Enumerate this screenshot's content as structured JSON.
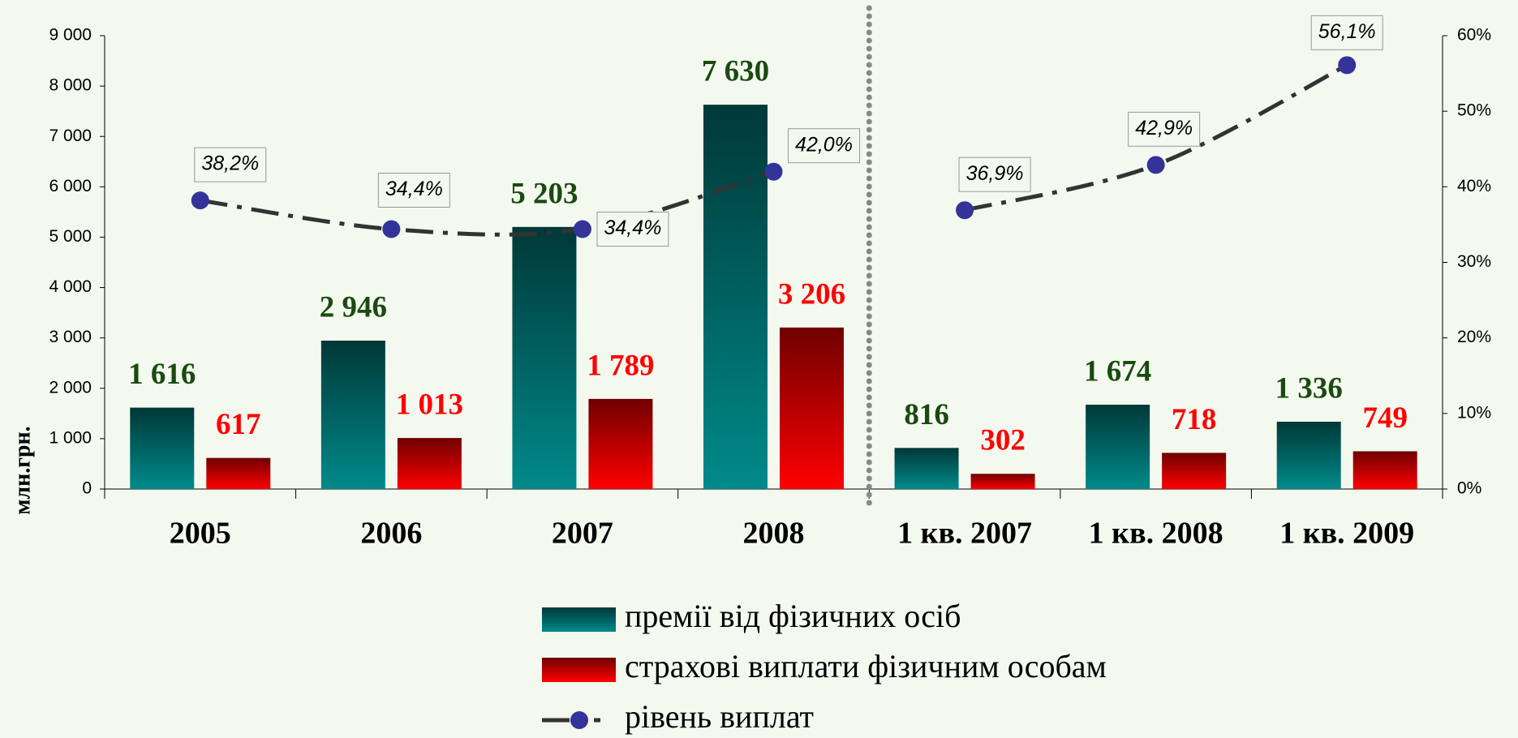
{
  "chart_data": {
    "type": "bar",
    "y_label": "млн.грн.",
    "categories": [
      "2005",
      "2006",
      "2007",
      "2008",
      "1 кв. 2007",
      "1 кв. 2008",
      "1 кв. 2009"
    ],
    "divider_after": 3,
    "series": [
      {
        "name": "премії від фізичних осіб",
        "type": "bar",
        "color": [
          "#003838",
          "#008a8a"
        ],
        "label_color": "#1a4a10",
        "values": [
          1616,
          2946,
          5203,
          7630,
          816,
          1674,
          1336
        ],
        "value_labels": [
          "1 616",
          "2 946",
          "5 203",
          "7 630",
          "816",
          "1 674",
          "1 336"
        ]
      },
      {
        "name": "страхові виплати фізичним особам",
        "type": "bar",
        "color": [
          "#700000",
          "#ff0000"
        ],
        "label_color": "#ff0000",
        "values": [
          617,
          1013,
          1789,
          3206,
          302,
          718,
          749
        ],
        "value_labels": [
          "617",
          "1 013",
          "1 789",
          "3 206",
          "302",
          "718",
          "749"
        ]
      },
      {
        "name": "рівень виплат",
        "type": "line",
        "axis": "y2",
        "color": "#333333",
        "marker_color": "#333399",
        "values": [
          38.2,
          34.4,
          34.4,
          42.0,
          36.9,
          42.9,
          56.1
        ],
        "value_labels": [
          "38,2%",
          "34,4%",
          "34,4%",
          "42,0%",
          "36,9%",
          "42,9%",
          "56,1%"
        ]
      }
    ],
    "ylim": [
      0,
      9000
    ],
    "yticks": [
      0,
      {
        "value": 1000,
        "label": "1 000"
      },
      {
        "value": 2000,
        "label": "2 000"
      },
      {
        "value": 3000,
        "label": "3 000"
      },
      {
        "value": 4000,
        "label": "4 000"
      },
      {
        "value": 5000,
        "label": "5 000"
      },
      {
        "value": 6000,
        "label": "6 000"
      },
      {
        "value": 7000,
        "label": "7 000"
      },
      {
        "value": 8000,
        "label": "8 000"
      },
      {
        "value": 9000,
        "label": "9 000"
      }
    ],
    "y2lim": [
      0,
      60
    ],
    "y2ticks": [
      {
        "value": 0,
        "label": "0%"
      },
      {
        "value": 10,
        "label": "10%"
      },
      {
        "value": 20,
        "label": "20%"
      },
      {
        "value": 30,
        "label": "30%"
      },
      {
        "value": 40,
        "label": "40%"
      },
      {
        "value": 50,
        "label": "50%"
      },
      {
        "value": 60,
        "label": "60%"
      }
    ],
    "grid": false,
    "legend": "bottom"
  }
}
